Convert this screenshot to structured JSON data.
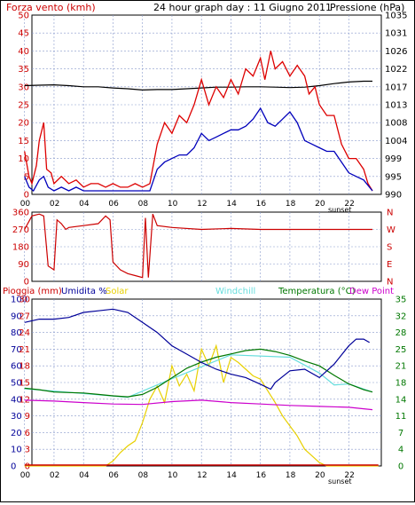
{
  "header": {
    "left_title": "Forza vento (kmh)",
    "center_title": "24 hour graph day : 11 Giugno 2011",
    "right_title": "Pressione (hPa)"
  },
  "legend2": {
    "pioggia": "Pioggia (mm)",
    "umidita": "Umidita %",
    "solar": "Solar",
    "windchill": "Windchill",
    "temperatura": "Temperatura (°C)",
    "dewpoint": "Dew Point"
  },
  "x_ticks": [
    "00",
    "02",
    "04",
    "06",
    "08",
    "10",
    "12",
    "14",
    "16",
    "18",
    "20",
    "22"
  ],
  "sunset_label": "sunset",
  "colors": {
    "wind": "#dd0000",
    "gust": "#cc0000",
    "speed": "#0000bb",
    "pressure": "#000000",
    "dir": "#cc0000",
    "hum": "#000099",
    "solar": "#e8d000",
    "temp": "#007700",
    "windchill": "#66dddd",
    "dew": "#cc00cc",
    "rain": "#cc0000",
    "grid": "#8899cc"
  },
  "chart_data": [
    {
      "type": "line",
      "name": "wind-pressure",
      "title": "24 hour graph day : 11 Giugno 2011",
      "ylabel_left": "Forza vento (kmh)",
      "ylabel_right": "Pressione (hPa)",
      "y_left_ticks": [
        0,
        5,
        10,
        15,
        20,
        25,
        30,
        35,
        40,
        45,
        50
      ],
      "y_right_ticks": [
        990,
        995,
        999,
        1004,
        1008,
        1013,
        1017,
        1022,
        1026,
        1031,
        1035
      ],
      "x_range": [
        0,
        24
      ],
      "series_wind_gust": [
        [
          0,
          12
        ],
        [
          0.3,
          5
        ],
        [
          0.5,
          3
        ],
        [
          0.8,
          8
        ],
        [
          1,
          15
        ],
        [
          1.3,
          20
        ],
        [
          1.5,
          7
        ],
        [
          1.8,
          6
        ],
        [
          2,
          3
        ],
        [
          2.5,
          5
        ],
        [
          3,
          3
        ],
        [
          3.5,
          4
        ],
        [
          4,
          2
        ],
        [
          4.5,
          3
        ],
        [
          5,
          3
        ],
        [
          5.5,
          2
        ],
        [
          6,
          3
        ],
        [
          6.5,
          2
        ],
        [
          7,
          2
        ],
        [
          7.5,
          3
        ],
        [
          8,
          2
        ],
        [
          8.5,
          3
        ],
        [
          9,
          14
        ],
        [
          9.5,
          20
        ],
        [
          10,
          17
        ],
        [
          10.5,
          22
        ],
        [
          11,
          20
        ],
        [
          11.5,
          25
        ],
        [
          12,
          32
        ],
        [
          12.5,
          25
        ],
        [
          13,
          30
        ],
        [
          13.5,
          27
        ],
        [
          14,
          32
        ],
        [
          14.5,
          28
        ],
        [
          15,
          35
        ],
        [
          15.5,
          33
        ],
        [
          16,
          38
        ],
        [
          16.3,
          32
        ],
        [
          16.7,
          40
        ],
        [
          17,
          35
        ],
        [
          17.5,
          37
        ],
        [
          18,
          33
        ],
        [
          18.5,
          36
        ],
        [
          19,
          33
        ],
        [
          19.3,
          28
        ],
        [
          19.7,
          30
        ],
        [
          20,
          25
        ],
        [
          20.5,
          22
        ],
        [
          21,
          22
        ],
        [
          21.5,
          14
        ],
        [
          22,
          10
        ],
        [
          22.5,
          10
        ],
        [
          23,
          7
        ],
        [
          23.3,
          3
        ],
        [
          23.6,
          1
        ]
      ],
      "series_wind_speed": [
        [
          0,
          5
        ],
        [
          0.3,
          2
        ],
        [
          0.6,
          1
        ],
        [
          1,
          4
        ],
        [
          1.3,
          5
        ],
        [
          1.6,
          2
        ],
        [
          2,
          1
        ],
        [
          2.5,
          2
        ],
        [
          3,
          1
        ],
        [
          3.5,
          2
        ],
        [
          4,
          1
        ],
        [
          4.5,
          1
        ],
        [
          5,
          1
        ],
        [
          6,
          1
        ],
        [
          7,
          1
        ],
        [
          8,
          1
        ],
        [
          8.5,
          1
        ],
        [
          9,
          7
        ],
        [
          9.5,
          9
        ],
        [
          10,
          10
        ],
        [
          10.5,
          11
        ],
        [
          11,
          11
        ],
        [
          11.5,
          13
        ],
        [
          12,
          17
        ],
        [
          12.5,
          15
        ],
        [
          13,
          16
        ],
        [
          13.5,
          17
        ],
        [
          14,
          18
        ],
        [
          14.5,
          18
        ],
        [
          15,
          19
        ],
        [
          15.5,
          21
        ],
        [
          16,
          24
        ],
        [
          16.5,
          20
        ],
        [
          17,
          19
        ],
        [
          17.5,
          21
        ],
        [
          18,
          23
        ],
        [
          18.5,
          20
        ],
        [
          19,
          15
        ],
        [
          19.5,
          14
        ],
        [
          20,
          13
        ],
        [
          20.5,
          12
        ],
        [
          21,
          12
        ],
        [
          21.5,
          9
        ],
        [
          22,
          6
        ],
        [
          22.5,
          5
        ],
        [
          23,
          4
        ],
        [
          23.6,
          1
        ]
      ],
      "series_pressure": [
        [
          0,
          1017.3
        ],
        [
          1,
          1017.4
        ],
        [
          2,
          1017.5
        ],
        [
          3,
          1017.3
        ],
        [
          4,
          1017.0
        ],
        [
          5,
          1017.0
        ],
        [
          6,
          1016.7
        ],
        [
          7,
          1016.5
        ],
        [
          8,
          1016.2
        ],
        [
          9,
          1016.3
        ],
        [
          10,
          1016.3
        ],
        [
          11,
          1016.5
        ],
        [
          12,
          1016.7
        ],
        [
          13,
          1016.9
        ],
        [
          14,
          1016.9
        ],
        [
          15,
          1017.0
        ],
        [
          16,
          1017.0
        ],
        [
          17,
          1016.9
        ],
        [
          18,
          1016.8
        ],
        [
          19,
          1016.9
        ],
        [
          20,
          1017.3
        ],
        [
          21,
          1017.8
        ],
        [
          22,
          1018.2
        ],
        [
          23,
          1018.4
        ],
        [
          23.6,
          1018.4
        ]
      ]
    },
    {
      "type": "line",
      "name": "wind-direction",
      "y_left_ticks": [
        0,
        90,
        180,
        270,
        360
      ],
      "y_right_labels": [
        "N",
        "W",
        "S",
        "E",
        "N"
      ],
      "series_direction": [
        [
          0,
          270
        ],
        [
          0.5,
          340
        ],
        [
          1,
          350
        ],
        [
          1.3,
          340
        ],
        [
          1.6,
          80
        ],
        [
          2,
          60
        ],
        [
          2.2,
          320
        ],
        [
          2.5,
          300
        ],
        [
          2.8,
          270
        ],
        [
          3,
          280
        ],
        [
          4,
          290
        ],
        [
          5,
          300
        ],
        [
          5.5,
          340
        ],
        [
          5.8,
          320
        ],
        [
          6,
          100
        ],
        [
          6.5,
          60
        ],
        [
          7,
          40
        ],
        [
          7.5,
          30
        ],
        [
          8,
          20
        ],
        [
          8.2,
          330
        ],
        [
          8.4,
          20
        ],
        [
          8.7,
          350
        ],
        [
          9,
          290
        ],
        [
          10,
          280
        ],
        [
          12,
          270
        ],
        [
          14,
          275
        ],
        [
          16,
          270
        ],
        [
          18,
          270
        ],
        [
          20,
          270
        ],
        [
          22,
          270
        ],
        [
          23.6,
          270
        ]
      ]
    },
    {
      "type": "line",
      "name": "rain-humidity-solar-temp",
      "legend": [
        "Pioggia (mm)",
        "Umidita %",
        "Solar",
        "Windchill",
        "Temperatura (°C)",
        "Dew Point"
      ],
      "y_left1_ticks": [
        0,
        0,
        8,
        16,
        24,
        32,
        40,
        48,
        56,
        64,
        72,
        80,
        88,
        96,
        100
      ],
      "y_left2_ticks": [
        0,
        3,
        6,
        9,
        12,
        15,
        18,
        21,
        24,
        27,
        30
      ],
      "y_right_ticks": [
        0,
        4,
        7,
        11,
        14,
        18,
        21,
        25,
        28,
        32,
        35
      ],
      "series_humidity": [
        [
          0,
          86
        ],
        [
          1,
          88
        ],
        [
          2,
          88
        ],
        [
          3,
          89
        ],
        [
          4,
          92
        ],
        [
          5,
          93
        ],
        [
          6,
          94
        ],
        [
          7,
          92
        ],
        [
          8,
          86
        ],
        [
          9,
          80
        ],
        [
          10,
          72
        ],
        [
          11,
          67
        ],
        [
          12,
          62
        ],
        [
          13,
          58
        ],
        [
          14,
          55
        ],
        [
          15,
          53
        ],
        [
          16,
          49
        ],
        [
          16.7,
          46
        ],
        [
          17,
          50
        ],
        [
          18,
          57
        ],
        [
          19,
          58
        ],
        [
          20,
          53
        ],
        [
          21,
          61
        ],
        [
          22,
          72
        ],
        [
          22.5,
          76
        ],
        [
          23,
          76
        ],
        [
          23.4,
          74
        ]
      ],
      "series_solar": [
        [
          0,
          0
        ],
        [
          5.5,
          0
        ],
        [
          6,
          3
        ],
        [
          6.5,
          8
        ],
        [
          7,
          12
        ],
        [
          7.5,
          15
        ],
        [
          8,
          26
        ],
        [
          8.5,
          40
        ],
        [
          9,
          48
        ],
        [
          9.5,
          38
        ],
        [
          10,
          60
        ],
        [
          10.5,
          48
        ],
        [
          11,
          55
        ],
        [
          11.5,
          45
        ],
        [
          12,
          70
        ],
        [
          12.5,
          60
        ],
        [
          13,
          72
        ],
        [
          13.5,
          50
        ],
        [
          14,
          65
        ],
        [
          14.5,
          62
        ],
        [
          15,
          58
        ],
        [
          15.5,
          54
        ],
        [
          16,
          52
        ],
        [
          16.5,
          45
        ],
        [
          17,
          38
        ],
        [
          17.5,
          30
        ],
        [
          18,
          24
        ],
        [
          18.5,
          18
        ],
        [
          19,
          10
        ],
        [
          19.5,
          6
        ],
        [
          20,
          2
        ],
        [
          20.5,
          0
        ],
        [
          24,
          0
        ]
      ],
      "series_temperature": [
        [
          0,
          16.3
        ],
        [
          1,
          16.0
        ],
        [
          2,
          15.5
        ],
        [
          3,
          15.4
        ],
        [
          4,
          15.3
        ],
        [
          5,
          15.0
        ],
        [
          6,
          14.7
        ],
        [
          7,
          14.5
        ],
        [
          8,
          15.0
        ],
        [
          9,
          16.5
        ],
        [
          10,
          18.5
        ],
        [
          11,
          20.5
        ],
        [
          12,
          21.8
        ],
        [
          13,
          22.8
        ],
        [
          14,
          23.5
        ],
        [
          15,
          24.2
        ],
        [
          16,
          24.5
        ],
        [
          17,
          24.0
        ],
        [
          18,
          23.2
        ],
        [
          19,
          22.0
        ],
        [
          20,
          21.0
        ],
        [
          21,
          19.0
        ],
        [
          22,
          17.2
        ],
        [
          23,
          16.0
        ],
        [
          23.6,
          15.5
        ]
      ],
      "series_windchill": [
        [
          0,
          16.2
        ],
        [
          4,
          15.2
        ],
        [
          7,
          14.4
        ],
        [
          10,
          18.3
        ],
        [
          14,
          23.3
        ],
        [
          18,
          22.8
        ],
        [
          20,
          19.5
        ],
        [
          21,
          17.0
        ],
        [
          22,
          17.2
        ],
        [
          23.6,
          15.5
        ]
      ],
      "series_dewpoint": [
        [
          0,
          13.8
        ],
        [
          2,
          13.6
        ],
        [
          4,
          13.3
        ],
        [
          6,
          13.0
        ],
        [
          8,
          12.9
        ],
        [
          10,
          13.5
        ],
        [
          12,
          13.8
        ],
        [
          14,
          13.3
        ],
        [
          16,
          13.0
        ],
        [
          18,
          12.7
        ],
        [
          20,
          12.5
        ],
        [
          22,
          12.3
        ],
        [
          23.6,
          11.8
        ]
      ],
      "series_rain": [
        [
          0,
          0
        ],
        [
          24,
          0
        ]
      ]
    }
  ]
}
